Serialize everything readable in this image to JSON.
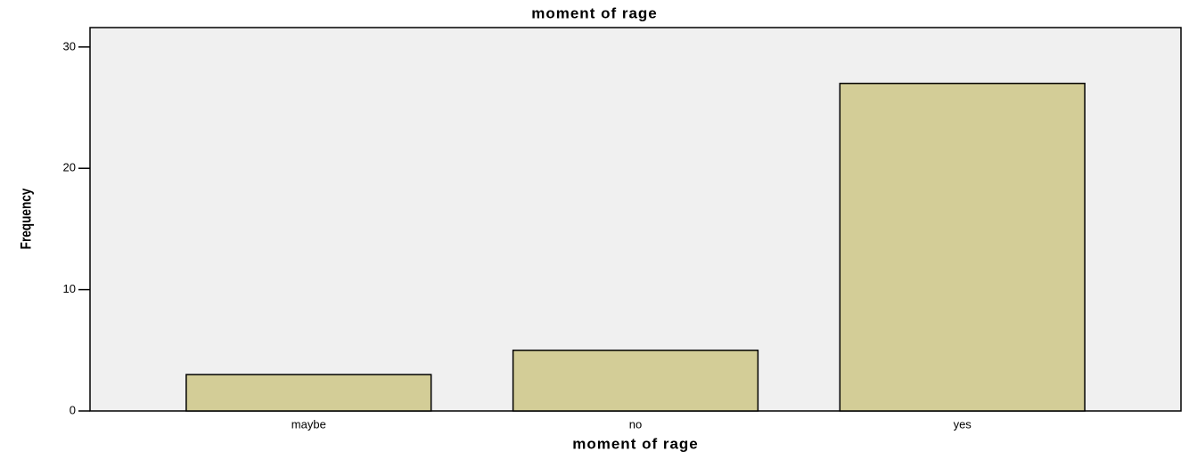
{
  "chart_data": {
    "type": "bar",
    "title": "moment of rage",
    "x_label": "moment of rage",
    "y_label": "Frequency",
    "categories": [
      "maybe",
      "no",
      "yes"
    ],
    "values": [
      3,
      5,
      27
    ],
    "color": "#d3cd97",
    "ylim": [
      0,
      31.6
    ],
    "yticks": [
      0,
      10,
      20,
      30
    ],
    "grid": false
  }
}
